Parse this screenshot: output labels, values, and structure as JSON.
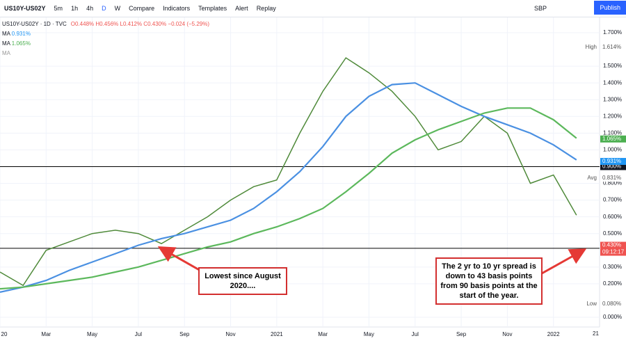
{
  "toolbar": {
    "symbol": "US10Y-US02Y",
    "items": [
      "5m",
      "1h",
      "4h",
      "D",
      "W",
      "Compare",
      "Indicators",
      "Templates",
      "Alert",
      "Replay"
    ],
    "currency": "SBP",
    "publish": "Publish"
  },
  "legend": {
    "title": "US10Y-US02Y · 1D · TVC",
    "ohlc": "O0.448% H0.456% L0.412% C0.430% −0.024 (−5.29%)",
    "ma1_name": "MA",
    "ma1_value": "0.931%",
    "ma2_name": "MA",
    "ma2_value": "1.065%",
    "ma3_name": "MA"
  },
  "chart_data": {
    "type": "line",
    "x": [
      "2020-01",
      "2020-02",
      "2020-03",
      "2020-04",
      "2020-05",
      "2020-06",
      "2020-07",
      "2020-08",
      "2020-09",
      "2020-10",
      "2020-11",
      "2020-12",
      "2021-01",
      "2021-02",
      "2021-03",
      "2021-04",
      "2021-05",
      "2021-06",
      "2021-07",
      "2021-08",
      "2021-09",
      "2021-10",
      "2021-11",
      "2021-12",
      "2022-01",
      "2022-02"
    ],
    "series": [
      {
        "name": "US10Y-US02Y",
        "color": "#4f8a3a",
        "values": [
          0.27,
          0.19,
          0.4,
          0.45,
          0.5,
          0.52,
          0.5,
          0.44,
          0.52,
          0.6,
          0.7,
          0.78,
          0.82,
          1.1,
          1.35,
          1.55,
          1.46,
          1.35,
          1.2,
          1.0,
          1.05,
          1.2,
          1.1,
          0.8,
          0.85,
          0.61
        ]
      },
      {
        "name": "MA",
        "color": "#4a90e2",
        "values": [
          0.15,
          0.18,
          0.22,
          0.28,
          0.33,
          0.38,
          0.43,
          0.47,
          0.5,
          0.54,
          0.58,
          0.65,
          0.75,
          0.87,
          1.02,
          1.2,
          1.32,
          1.39,
          1.4,
          1.33,
          1.26,
          1.2,
          1.15,
          1.1,
          1.03,
          0.94
        ]
      },
      {
        "name": "MA",
        "color": "#5cb85c",
        "values": [
          0.17,
          0.18,
          0.2,
          0.22,
          0.24,
          0.27,
          0.3,
          0.34,
          0.38,
          0.42,
          0.45,
          0.5,
          0.54,
          0.59,
          0.65,
          0.75,
          0.86,
          0.98,
          1.06,
          1.12,
          1.17,
          1.22,
          1.25,
          1.25,
          1.18,
          1.07
        ]
      }
    ],
    "xlim": [
      "2020-01",
      "2022-03"
    ],
    "xticks": [
      {
        "value": "2020-01",
        "label": "20"
      },
      {
        "value": "2020-03",
        "label": "Mar"
      },
      {
        "value": "2020-05",
        "label": "May"
      },
      {
        "value": "2020-07",
        "label": "Jul"
      },
      {
        "value": "2020-09",
        "label": "Sep"
      },
      {
        "value": "2020-11",
        "label": "Nov"
      },
      {
        "value": "2021-01",
        "label": "2021"
      },
      {
        "value": "2021-03",
        "label": "Mar"
      },
      {
        "value": "2021-05",
        "label": "May"
      },
      {
        "value": "2021-07",
        "label": "Jul"
      },
      {
        "value": "2021-09",
        "label": "Sep"
      },
      {
        "value": "2021-11",
        "label": "Nov"
      },
      {
        "value": "2022-01",
        "label": "2022"
      }
    ],
    "ylim": [
      0,
      1.7
    ],
    "yticks": [
      {
        "value": 1.7,
        "label": "1.700%"
      },
      {
        "value": 1.5,
        "label": "1.500%"
      },
      {
        "value": 1.4,
        "label": "1.400%"
      },
      {
        "value": 1.3,
        "label": "1.300%"
      },
      {
        "value": 1.2,
        "label": "1.200%"
      },
      {
        "value": 1.1,
        "label": "1.100%"
      },
      {
        "value": 1.0,
        "label": "1.000%"
      },
      {
        "value": 0.8,
        "label": "0.800%"
      },
      {
        "value": 0.7,
        "label": "0.700%"
      },
      {
        "value": 0.6,
        "label": "0.600%"
      },
      {
        "value": 0.5,
        "label": "0.500%"
      },
      {
        "value": 0.3,
        "label": "0.300%"
      },
      {
        "value": 0.2,
        "label": "0.200%"
      },
      {
        "value": 0.0,
        "label": "0.000%"
      }
    ],
    "grid": true,
    "level_lines": [
      {
        "value": 0.9,
        "label": "0.900%"
      },
      {
        "value": 0.412,
        "label": "0.412%"
      }
    ],
    "axis_labels": [
      {
        "value": 1.614,
        "label": "1.614%",
        "tag": "High",
        "color": "#ffffff"
      },
      {
        "value": 1.065,
        "label": "1.065%",
        "color": "#4caf50"
      },
      {
        "value": 0.931,
        "label": "0.931%",
        "color": "#2196f3"
      },
      {
        "value": 0.831,
        "label": "0.831%",
        "tag": "Avg",
        "color": "#ffffff"
      },
      {
        "value": 0.43,
        "label": "0.430%",
        "tag": "09:12:17",
        "color": "#ef5350"
      },
      {
        "value": 0.08,
        "label": "0.080%",
        "tag": "Low",
        "color": "#ffffff"
      }
    ],
    "date_marker": "21"
  },
  "annotations": [
    "Lowest since August 2020....",
    "The 2 yr to 10 yr spread is down to 43 basis points from 90 basis points at the start of the year."
  ]
}
